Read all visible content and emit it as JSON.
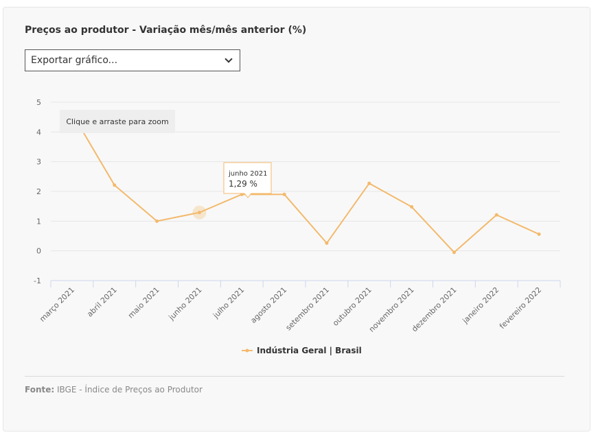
{
  "title": "Preços ao produtor - Variação mês/mês anterior (%)",
  "export": {
    "label": "Exportar gráfico..."
  },
  "zoom_hint": "Clique e arraste para zoom",
  "source": {
    "label": "Fonte:",
    "text": "IBGE - Índice de Preços ao Produtor"
  },
  "colors": {
    "series": "#f3b96b",
    "grid": "#e6e6e6",
    "axis": "#ccd6eb",
    "text": "#666666"
  },
  "chart_data": {
    "type": "line",
    "title": "Preços ao produtor - Variação mês/mês anterior (%)",
    "xlabel": "",
    "ylabel": "",
    "ylim": [
      -1,
      5
    ],
    "yticks": [
      5,
      4,
      3,
      2,
      1,
      0,
      -1
    ],
    "grid": true,
    "legend": "bottom-center",
    "categories": [
      "março 2021",
      "abril 2021",
      "maio 2021",
      "junho 2021",
      "julho 2021",
      "agosto 2021",
      "setembro 2021",
      "outubro 2021",
      "novembro 2021",
      "dezembro 2021",
      "janeiro 2022",
      "fevereiro 2022"
    ],
    "series": [
      {
        "name": "Indústria Geral | Brasil",
        "values": [
          4.63,
          2.21,
          1.0,
          1.29,
          1.9,
          1.9,
          0.26,
          2.27,
          1.48,
          -0.05,
          1.21,
          0.56
        ]
      }
    ],
    "tooltip": {
      "category": "junho 2021",
      "value_text": "1,29 %"
    }
  }
}
